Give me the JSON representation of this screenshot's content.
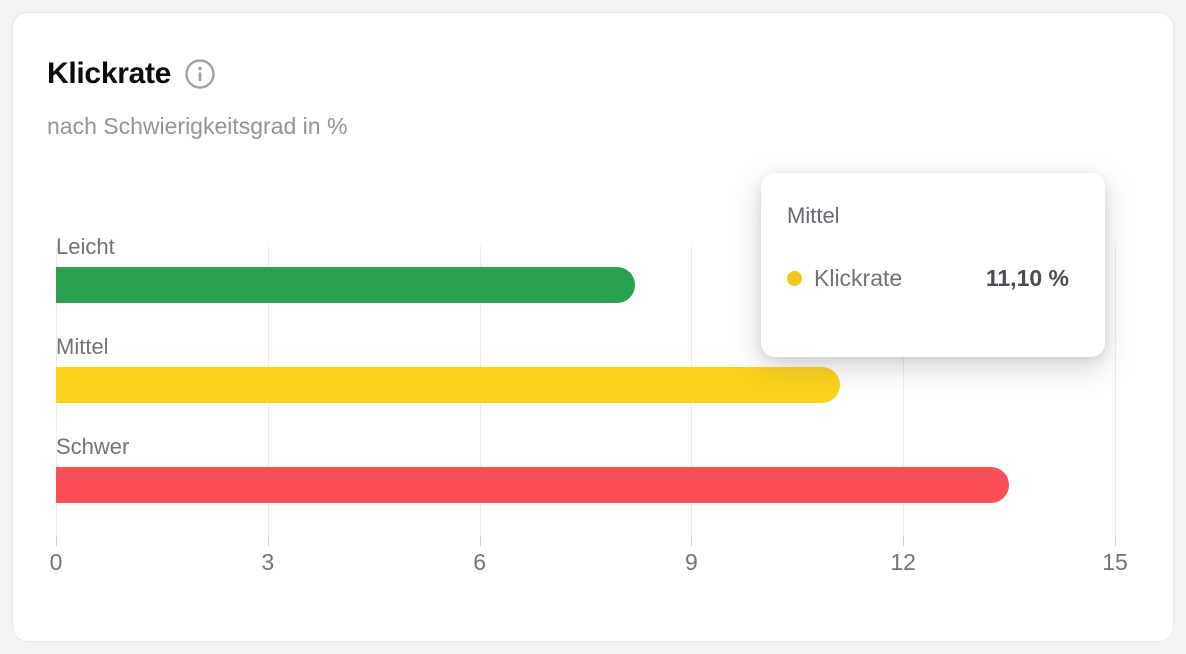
{
  "card": {
    "title": "Klickrate",
    "subtitle": "nach Schwierigkeitsgrad in %"
  },
  "chart_data": {
    "type": "bar",
    "orientation": "horizontal",
    "title": "Klickrate",
    "subtitle": "nach Schwierigkeitsgrad in %",
    "series_name": "Klickrate",
    "categories": [
      "Leicht",
      "Mittel",
      "Schwer"
    ],
    "values": [
      8.2,
      11.1,
      13.5
    ],
    "bar_colors": [
      "#2aa14e",
      "#fdd21c",
      "#fa4f56"
    ],
    "value_suffix": "%",
    "xlim": [
      0,
      15
    ],
    "x_ticks": [
      0,
      3,
      6,
      9,
      12,
      15
    ],
    "grid": true,
    "legend": "none"
  },
  "tooltip": {
    "title": "Mittel",
    "series_label": "Klickrate",
    "value": "11,10 %",
    "marker_color": "#f2c71d"
  },
  "colors": {
    "page_background": "#f2f3f5",
    "card_background": "#ffffff",
    "green": "#2aa14e",
    "yellow": "#fdd21c",
    "red": "#fa4f56",
    "gridline": "#ececee",
    "axis_text": "#70747e",
    "label_text": "#737373"
  }
}
